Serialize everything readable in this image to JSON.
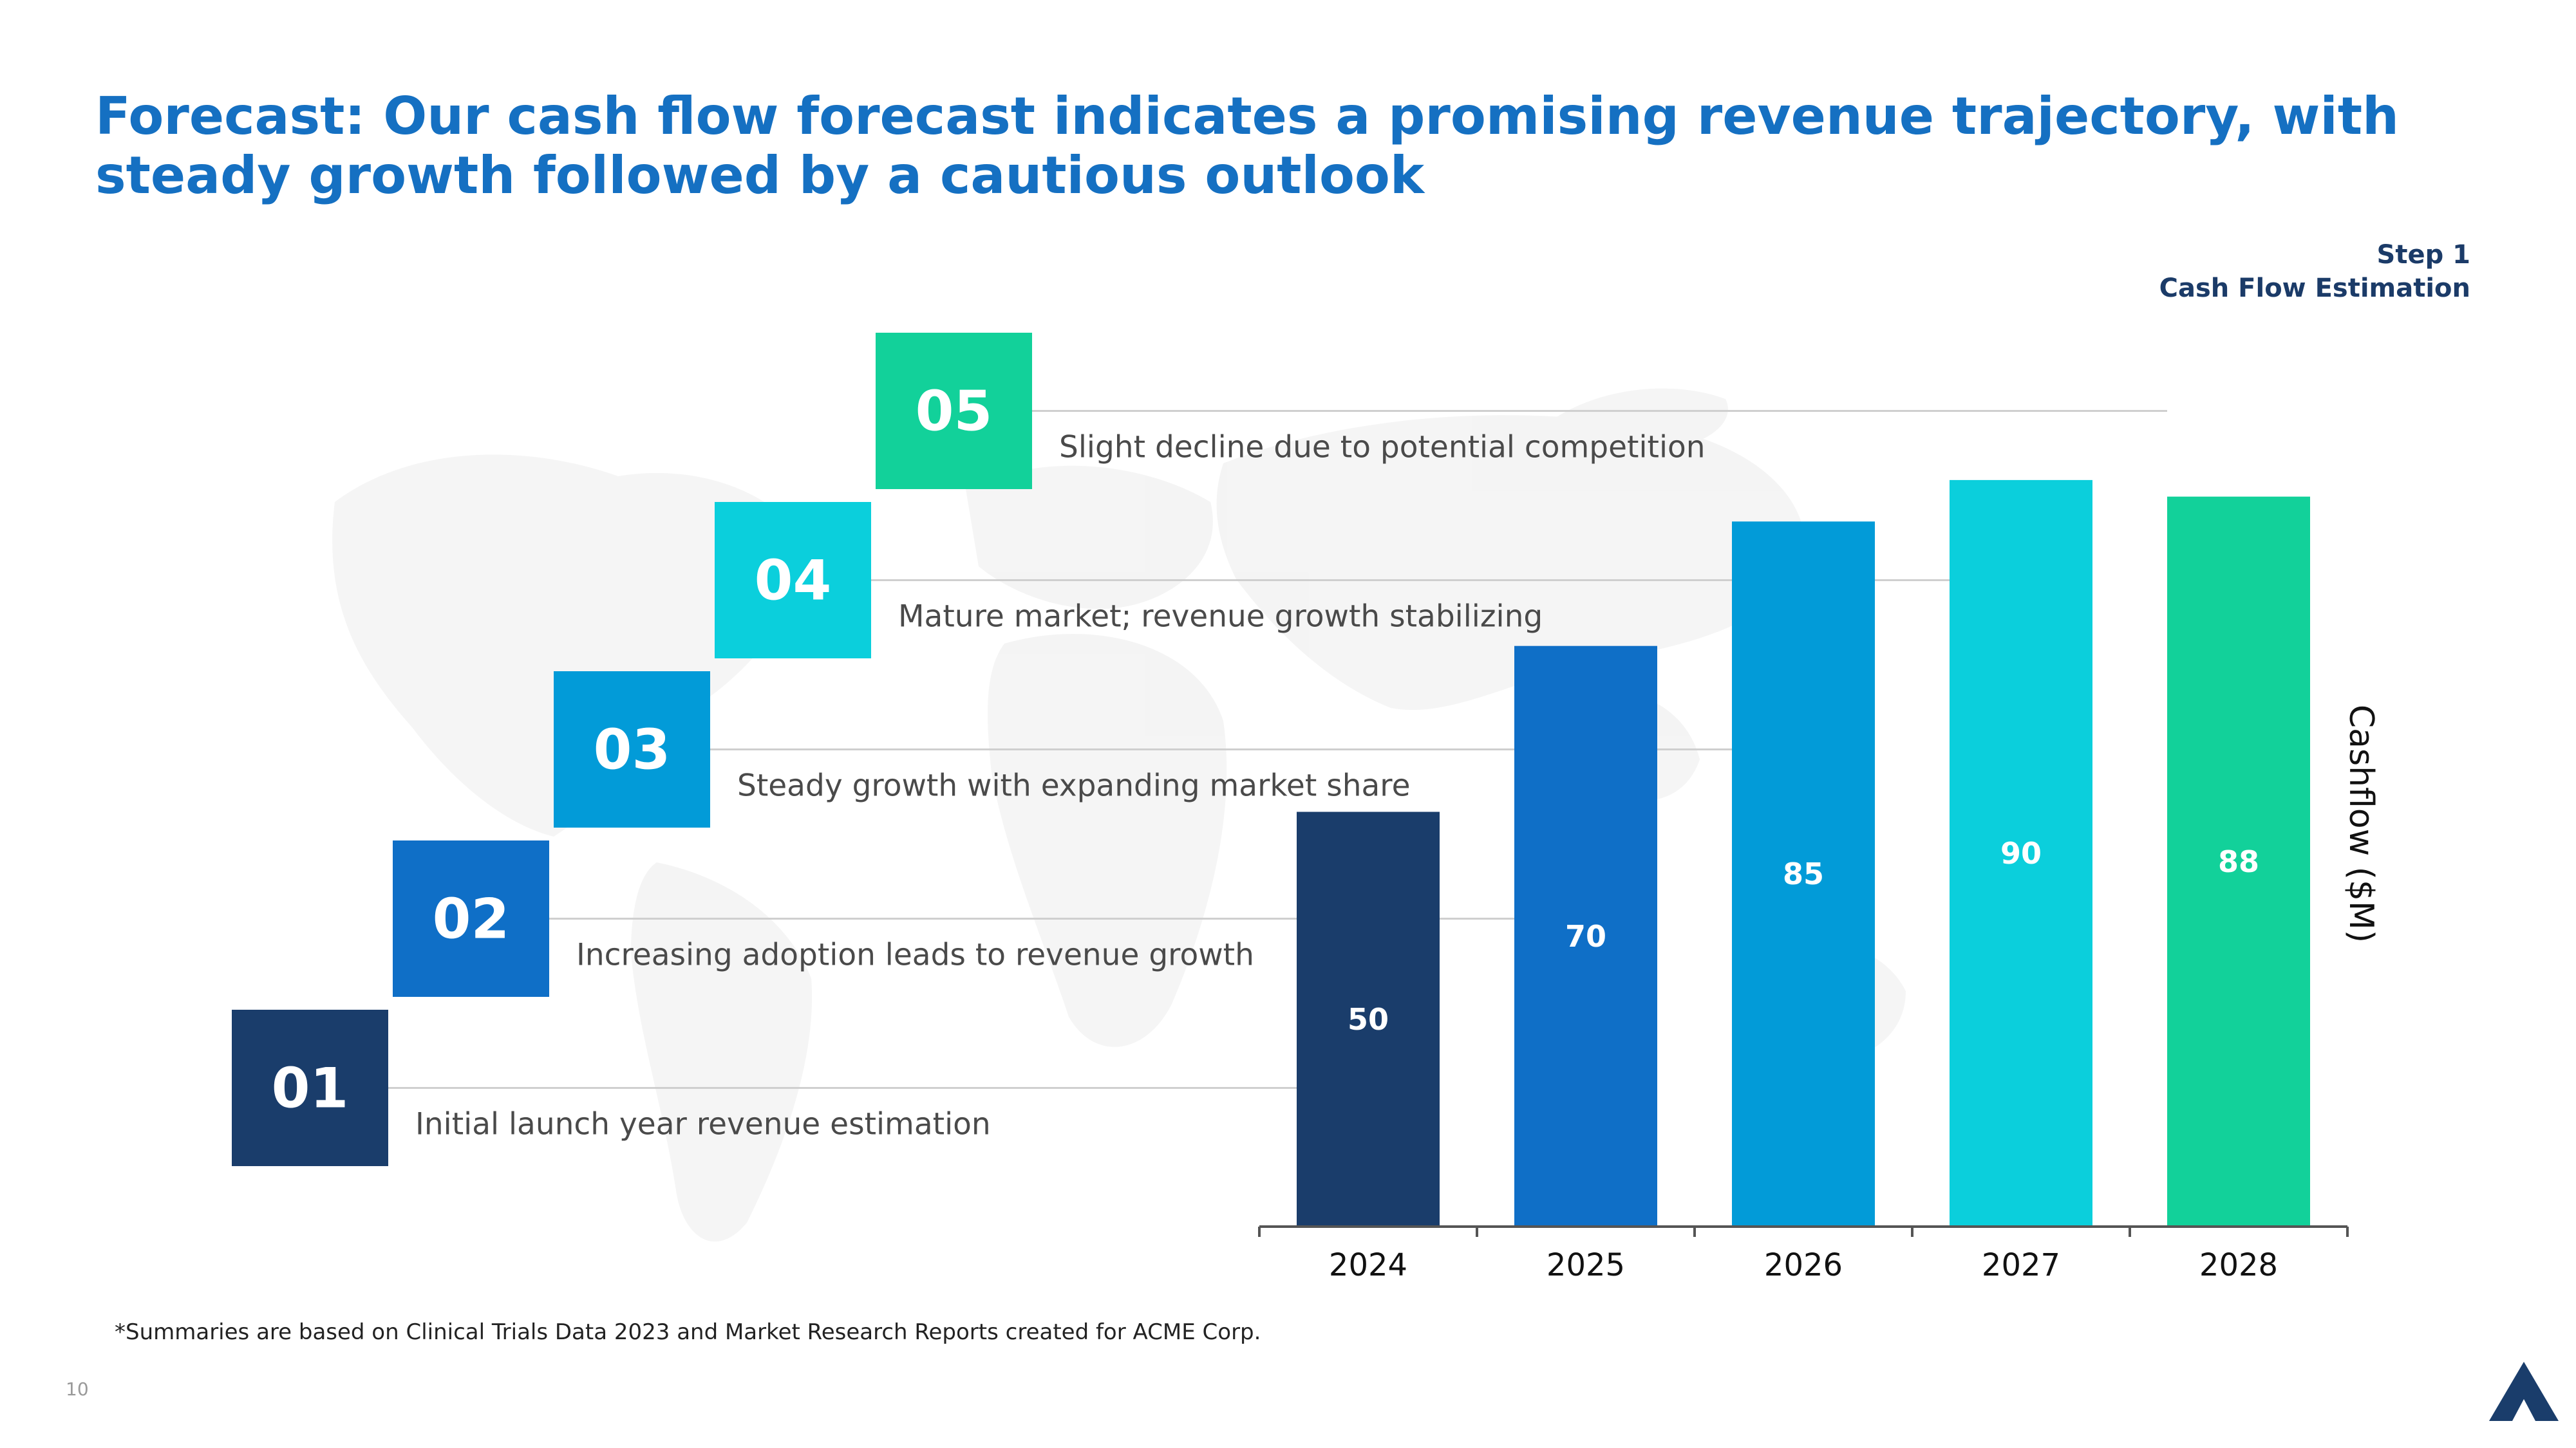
{
  "slide": {
    "title": "Forecast: Our cash flow forecast indicates a promising revenue trajectory, with steady growth followed by a cautious outlook",
    "step_label": "Step 1",
    "step_subtitle": "Cash Flow Estimation",
    "footnote": "*Summaries are based on Clinical Trials Data 2023 and Market Research Reports created for ACME Corp.",
    "page_number": "10",
    "logo_icon": "triangle-logo-icon"
  },
  "steps": [
    {
      "number": "01",
      "text": "Initial launch year revenue estimation",
      "color": "#1a3d6b"
    },
    {
      "number": "02",
      "text": "Increasing adoption leads to revenue growth",
      "color": "#0f6fc7"
    },
    {
      "number": "03",
      "text": "Steady growth with expanding market share",
      "color": "#029bd8"
    },
    {
      "number": "04",
      "text": "Mature market; revenue growth stabilizing",
      "color": "#0bcfdc"
    },
    {
      "number": "05",
      "text": "Slight decline due to potential competition",
      "color": "#12d19a"
    }
  ],
  "chart_data": {
    "type": "bar",
    "categories": [
      "2024",
      "2025",
      "2026",
      "2027",
      "2028"
    ],
    "values": [
      50,
      70,
      85,
      90,
      88
    ],
    "data_labels": [
      "50",
      "70",
      "85",
      "90",
      "88"
    ],
    "colors": [
      "#1a3d6b",
      "#0f6fc7",
      "#029bd8",
      "#0bcfdc",
      "#12d19a"
    ],
    "title": "",
    "xlabel": "",
    "ylabel": "Cashflow ($M)",
    "ylim": [
      0,
      100
    ],
    "grid": false,
    "legend": "none"
  }
}
